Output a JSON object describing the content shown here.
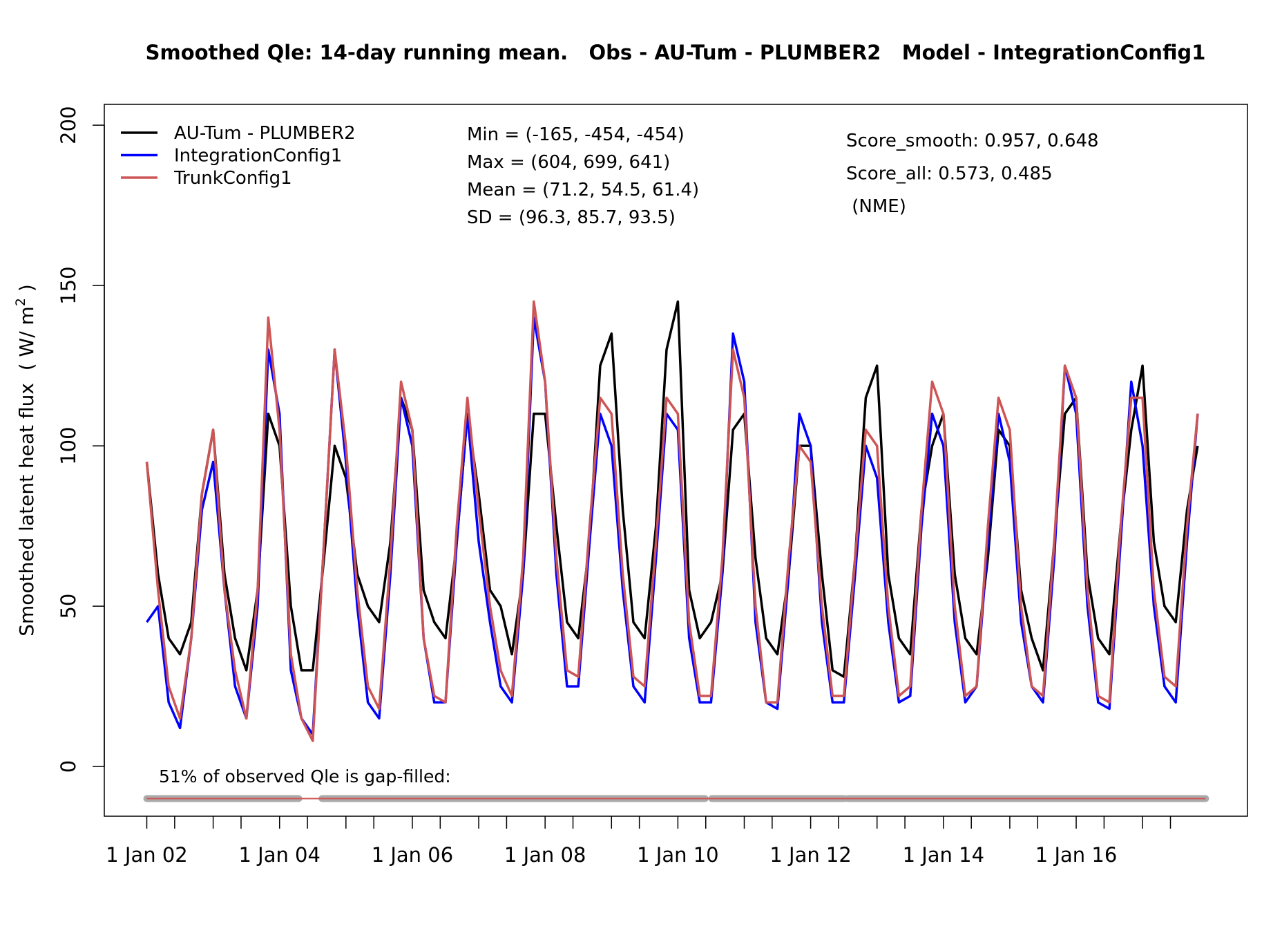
{
  "chart_data": {
    "type": "line",
    "title": "Smoothed Qle: 14-day running mean.   Obs - AU-Tum - PLUMBER2   Model - IntegrationConfig1",
    "ylabel": "Smoothed latent heat flux  ( W/ m",
    "ylabel_sup": "2",
    "ylabel_end": " )",
    "xlim": [
      2001.36,
      2018.58
    ],
    "ylim": [
      -15.5,
      206.5
    ],
    "yticks": [
      0,
      50,
      100,
      150,
      200
    ],
    "xticks": [
      {
        "value": 2002,
        "label": "1 Jan 02"
      },
      {
        "value": 2002.42,
        "label": null
      },
      {
        "value": 2003,
        "label": null
      },
      {
        "value": 2003.42,
        "label": null
      },
      {
        "value": 2004,
        "label": "1 Jan 04"
      },
      {
        "value": 2004.42,
        "label": null
      },
      {
        "value": 2005,
        "label": null
      },
      {
        "value": 2005.42,
        "label": null
      },
      {
        "value": 2006,
        "label": "1 Jan 06"
      },
      {
        "value": 2006.42,
        "label": null
      },
      {
        "value": 2007,
        "label": null
      },
      {
        "value": 2007.42,
        "label": null
      },
      {
        "value": 2008,
        "label": "1 Jan 08"
      },
      {
        "value": 2008.42,
        "label": null
      },
      {
        "value": 2009,
        "label": null
      },
      {
        "value": 2009.42,
        "label": null
      },
      {
        "value": 2010,
        "label": "1 Jan 10"
      },
      {
        "value": 2010.42,
        "label": null
      },
      {
        "value": 2011,
        "label": null
      },
      {
        "value": 2011.42,
        "label": null
      },
      {
        "value": 2012,
        "label": "1 Jan 12"
      },
      {
        "value": 2012.42,
        "label": null
      },
      {
        "value": 2013,
        "label": null
      },
      {
        "value": 2013.42,
        "label": null
      },
      {
        "value": 2014,
        "label": "1 Jan 14"
      },
      {
        "value": 2014.42,
        "label": null
      },
      {
        "value": 2015,
        "label": null
      },
      {
        "value": 2015.42,
        "label": null
      },
      {
        "value": 2016,
        "label": "1 Jan 16"
      },
      {
        "value": 2016.42,
        "label": null
      },
      {
        "value": 2017,
        "label": null
      },
      {
        "value": 2017.42,
        "label": null
      }
    ],
    "legend": "topleft",
    "x": [
      2002,
      2002.17,
      2002.33,
      2002.5,
      2002.67,
      2002.83,
      2003,
      2003.17,
      2003.33,
      2003.5,
      2003.67,
      2003.83,
      2004,
      2004.17,
      2004.33,
      2004.5,
      2004.67,
      2004.83,
      2005,
      2005.17,
      2005.33,
      2005.5,
      2005.67,
      2005.83,
      2006,
      2006.17,
      2006.33,
      2006.5,
      2006.67,
      2006.83,
      2007,
      2007.17,
      2007.33,
      2007.5,
      2007.67,
      2007.83,
      2008,
      2008.17,
      2008.33,
      2008.5,
      2008.67,
      2008.83,
      2009,
      2009.17,
      2009.33,
      2009.5,
      2009.67,
      2009.83,
      2010,
      2010.17,
      2010.33,
      2010.5,
      2010.67,
      2010.83,
      2011,
      2011.17,
      2011.33,
      2011.5,
      2011.67,
      2011.83,
      2012,
      2012.17,
      2012.33,
      2012.5,
      2012.67,
      2012.83,
      2013,
      2013.17,
      2013.33,
      2013.5,
      2013.67,
      2013.83,
      2014,
      2014.17,
      2014.33,
      2014.5,
      2014.67,
      2014.83,
      2015,
      2015.17,
      2015.33,
      2015.5,
      2015.67,
      2015.83,
      2016,
      2016.17,
      2016.33,
      2016.5,
      2016.67,
      2016.83,
      2017,
      2017.17,
      2017.33,
      2017.5,
      2017.67,
      2017.83
    ],
    "series": [
      {
        "name": "AU-Tum - PLUMBER2",
        "color": "#000000",
        "values": [
          95,
          60,
          40,
          35,
          45,
          85,
          105,
          60,
          40,
          30,
          55,
          110,
          100,
          50,
          30,
          30,
          65,
          100,
          90,
          60,
          50,
          45,
          70,
          115,
          105,
          55,
          45,
          40,
          70,
          110,
          85,
          55,
          50,
          35,
          60,
          110,
          110,
          75,
          45,
          40,
          70,
          125,
          135,
          80,
          45,
          40,
          75,
          130,
          145,
          55,
          40,
          45,
          60,
          105,
          110,
          65,
          40,
          35,
          60,
          100,
          100,
          60,
          30,
          28,
          65,
          115,
          125,
          60,
          40,
          35,
          80,
          100,
          110,
          60,
          40,
          35,
          65,
          105,
          100,
          55,
          40,
          30,
          70,
          110,
          115,
          60,
          40,
          35,
          75,
          105,
          125,
          70,
          50,
          45,
          80,
          100
        ]
      },
      {
        "name": "IntegrationConfig1",
        "color": "#0000ff",
        "values": [
          45,
          50,
          20,
          12,
          40,
          80,
          95,
          55,
          25,
          15,
          50,
          130,
          110,
          30,
          15,
          10,
          70,
          130,
          95,
          50,
          20,
          15,
          60,
          115,
          100,
          40,
          20,
          20,
          70,
          110,
          70,
          45,
          25,
          20,
          60,
          140,
          120,
          60,
          25,
          25,
          70,
          110,
          100,
          55,
          25,
          20,
          65,
          110,
          105,
          40,
          20,
          20,
          60,
          135,
          120,
          45,
          20,
          18,
          60,
          110,
          100,
          45,
          20,
          20,
          60,
          100,
          90,
          45,
          20,
          22,
          75,
          110,
          100,
          45,
          20,
          25,
          70,
          110,
          95,
          45,
          25,
          20,
          65,
          125,
          110,
          50,
          20,
          18,
          70,
          120,
          100,
          50,
          25,
          20,
          70,
          110
        ]
      },
      {
        "name": "TrunkConfig1",
        "color": "#cd5555",
        "values": [
          95,
          55,
          25,
          15,
          40,
          85,
          105,
          55,
          30,
          15,
          55,
          140,
          105,
          35,
          15,
          8,
          70,
          130,
          100,
          55,
          25,
          18,
          65,
          120,
          105,
          40,
          22,
          20,
          75,
          115,
          80,
          50,
          30,
          22,
          65,
          145,
          120,
          65,
          30,
          28,
          75,
          115,
          110,
          60,
          28,
          25,
          70,
          115,
          110,
          45,
          22,
          22,
          65,
          130,
          115,
          50,
          20,
          20,
          65,
          100,
          95,
          50,
          22,
          22,
          65,
          105,
          100,
          50,
          22,
          25,
          80,
          120,
          110,
          50,
          22,
          25,
          75,
          115,
          105,
          50,
          25,
          22,
          70,
          125,
          115,
          55,
          22,
          20,
          75,
          115,
          115,
          55,
          28,
          25,
          75,
          110
        ]
      }
    ],
    "stats": [
      "Min = (-165, -454, -454)",
      "Max = (604, 699, 641)",
      "Mean = (71.2, 54.5, 61.4)",
      "SD = (96.3, 85.7, 93.5)"
    ],
    "scores": [
      "Score_smooth: 0.957, 0.648",
      "Score_all: 0.573, 0.485",
      " (NME)"
    ],
    "gapfill_label": "51% of observed Qle is gap-filled:",
    "gapfill_y": -10,
    "gapfill_range": [
      2002,
      2017.95
    ],
    "gapfill_segments": [
      [
        2002,
        2004.29
      ],
      [
        2004.64,
        2010.41
      ],
      [
        2010.51,
        2012.51
      ],
      [
        2012.56,
        2017.95
      ]
    ]
  }
}
